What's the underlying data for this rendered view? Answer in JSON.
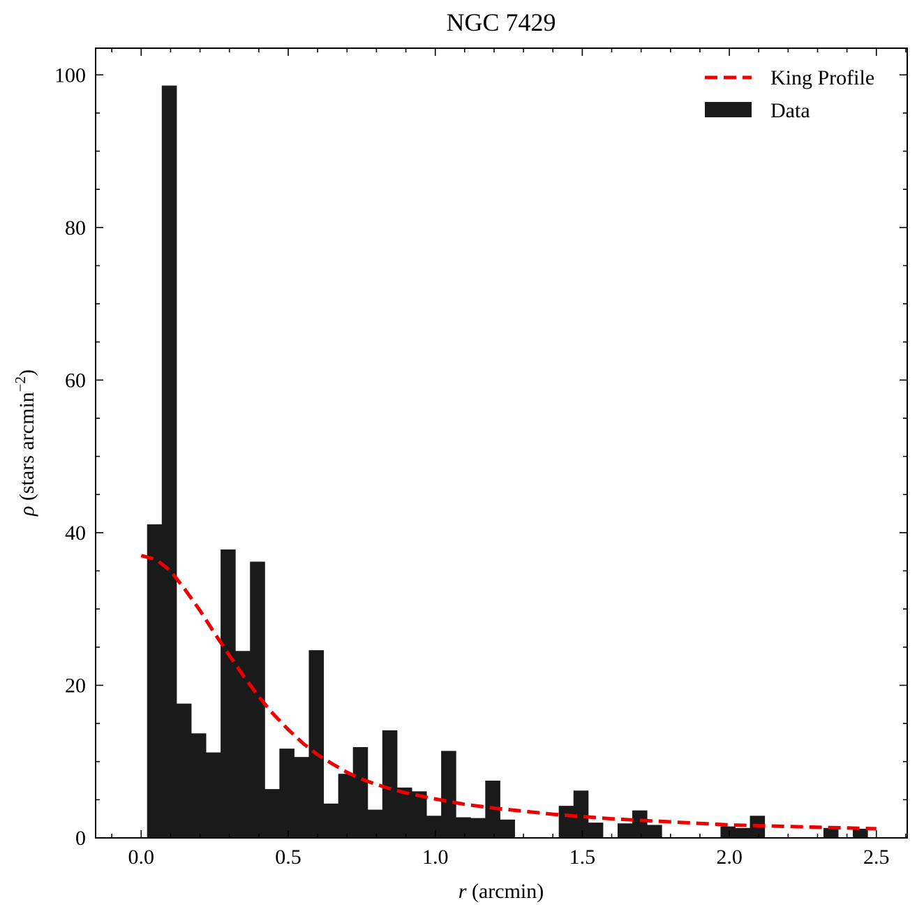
{
  "chart_data": {
    "type": "bar",
    "title": "NGC 7429",
    "xlabel": {
      "var": "r",
      "unit": " (arcmin)"
    },
    "ylabel": {
      "var": "ρ",
      "unit_pre": " (stars arcmin",
      "sup": "−2",
      "unit_post": ")"
    },
    "xlim": [
      -0.155,
      2.605
    ],
    "ylim": [
      0,
      103.5
    ],
    "xticks": [
      0.0,
      0.5,
      1.0,
      1.5,
      2.0,
      2.5
    ],
    "xtick_labels": [
      "0.0",
      "0.5",
      "1.0",
      "1.5",
      "2.0",
      "2.5"
    ],
    "yticks": [
      0,
      20,
      40,
      60,
      80,
      100
    ],
    "ytick_labels": [
      "0",
      "20",
      "40",
      "60",
      "80",
      "100"
    ],
    "grid": false,
    "legend_position": "top-right",
    "series": [
      {
        "name": "Data",
        "kind": "histogram",
        "color": "#1a1a1a",
        "bin_width": 0.05,
        "bin_starts": [
          0.02,
          0.07,
          0.12,
          0.17,
          0.22,
          0.27,
          0.32,
          0.37,
          0.42,
          0.47,
          0.52,
          0.57,
          0.62,
          0.67,
          0.72,
          0.77,
          0.82,
          0.87,
          0.92,
          0.97,
          1.02,
          1.07,
          1.12,
          1.17,
          1.22,
          1.27,
          1.32,
          1.37,
          1.42,
          1.47,
          1.52,
          1.57,
          1.62,
          1.67,
          1.72,
          1.77,
          1.82,
          1.87,
          1.92,
          1.97,
          2.02,
          2.07,
          2.12,
          2.17,
          2.22,
          2.27,
          2.32,
          2.37,
          2.42
        ],
        "values": [
          41.1,
          98.6,
          17.6,
          13.7,
          11.2,
          37.8,
          24.5,
          36.2,
          6.4,
          11.7,
          10.6,
          24.6,
          4.5,
          8.4,
          11.9,
          3.7,
          14.1,
          6.6,
          6.1,
          2.9,
          11.4,
          2.7,
          2.6,
          7.5,
          2.4,
          0,
          0,
          0,
          4.2,
          6.2,
          2.0,
          0,
          1.9,
          3.6,
          1.7,
          0,
          0,
          0,
          0,
          1.5,
          1.3,
          2.9,
          0,
          0,
          0,
          0,
          1.3,
          0,
          1.2
        ]
      },
      {
        "name": "King Profile",
        "kind": "line",
        "color": "#ee0000",
        "dash": "dashed",
        "x": [
          0.0,
          0.05,
          0.1,
          0.15,
          0.2,
          0.25,
          0.3,
          0.35,
          0.4,
          0.45,
          0.5,
          0.55,
          0.6,
          0.65,
          0.7,
          0.75,
          0.8,
          0.85,
          0.9,
          0.95,
          1.0,
          1.1,
          1.2,
          1.3,
          1.4,
          1.5,
          1.6,
          1.7,
          1.8,
          1.9,
          2.0,
          2.1,
          2.2,
          2.3,
          2.4,
          2.5
        ],
        "y": [
          37.0,
          36.5,
          35.0,
          32.5,
          29.8,
          26.8,
          23.9,
          21.1,
          18.5,
          16.2,
          14.2,
          12.4,
          10.9,
          9.7,
          8.6,
          7.7,
          7.0,
          6.4,
          5.9,
          5.5,
          5.1,
          4.4,
          3.9,
          3.5,
          3.1,
          2.8,
          2.5,
          2.3,
          2.1,
          1.9,
          1.7,
          1.6,
          1.5,
          1.4,
          1.3,
          1.2
        ]
      }
    ]
  }
}
